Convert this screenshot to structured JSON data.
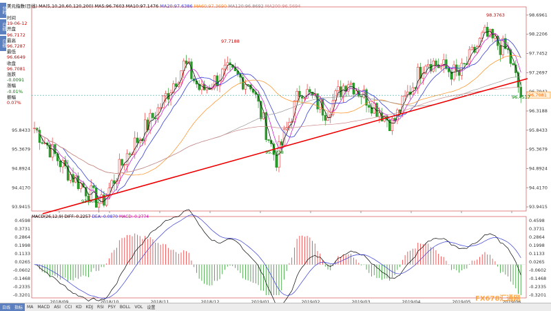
{
  "header": {
    "name": "美元指数(日线)",
    "ma_label": "MA(5,10,20,60,120,200)",
    "ma5": "MA5:96.7603",
    "ma10": "MA10:97.1476",
    "ma20": "MA20:97.6386",
    "ma60": "MA60:97.3690",
    "ma120": "MA120:96.8692",
    "ma200": "MA200:96.5694"
  },
  "sidebar": {
    "tabs": [
      "分时",
      "日线",
      "日线",
      "内外盘",
      "外盘",
      "外汇"
    ]
  },
  "info": [
    {
      "label": "时间",
      "value": "19-06-12"
    },
    {
      "label": "开盘",
      "value": "96.7172"
    },
    {
      "label": "最高",
      "value": "96.7287"
    },
    {
      "label": "最低",
      "value": "96.6649"
    },
    {
      "label": "收盘",
      "value": "96.7081"
    },
    {
      "label": "涨跌",
      "value": "-0.0091"
    },
    {
      "label": "涨幅",
      "value": "-0.01%"
    },
    {
      "label": "振幅",
      "value": "0.07%"
    }
  ],
  "price_ticks": [
    "98.6961",
    "98.2206",
    "97.7452",
    "97.2697",
    "96.7942",
    "96.3188",
    "95.8433",
    "95.3679",
    "94.8924",
    "94.4170",
    "93.9415"
  ],
  "macd_ticks": [
    "0.4598",
    "0.3731",
    "0.2864",
    "0.1998",
    "0.1133",
    "0.0265",
    "-0.0602",
    "-0.1468",
    "-0.2335",
    "-0.3201"
  ],
  "current_price": "96.7081",
  "macd": {
    "label": "MACD(26,12,9)",
    "diff": "DIFF:-0.2257",
    "dea": "DEA:-0.0870",
    "macd": "MACD:-0.2774"
  },
  "months": [
    "2018/09",
    "2018/10",
    "2018/11",
    "2018/12",
    "2019/01",
    "2019/02",
    "2019/03",
    "2019/04",
    "2019/05",
    "2019/06"
  ],
  "annotations": [
    {
      "text": "97.7188"
    },
    {
      "text": "98.3763"
    },
    {
      "text": "96.4517"
    },
    {
      "text": "95.0238"
    },
    {
      "text": "93.8082"
    }
  ],
  "toolbar": [
    "日线",
    "指标",
    "MA",
    "MACD",
    "ASI",
    "CCI",
    "KD",
    "KDJ",
    "RSI",
    "PSY",
    "BOLL",
    "VOL",
    "设置"
  ],
  "watermark": "FX678汇通网",
  "colors": {
    "up": "#e33",
    "down": "#2a9a2a",
    "trend": "#e00",
    "ma5": "#000",
    "ma10": "#222",
    "ma20": "#333bd8",
    "ma60": "#ff8c1a",
    "ma120": "#999",
    "ma200": "#c88"
  },
  "chart_data": {
    "type": "candlestick",
    "symbol": "美元指数",
    "period": "daily",
    "y_range": [
      93.9415,
      98.6961
    ],
    "price_levels": [
      98.6961,
      98.2206,
      97.7452,
      97.2697,
      96.7942,
      96.3188,
      95.8433,
      95.3679,
      94.8924,
      94.417,
      93.9415
    ],
    "annotations": [
      {
        "label": "97.7188",
        "date": "2018-11",
        "value": 97.7188
      },
      {
        "label": "98.3763",
        "date": "2019-05",
        "value": 98.3763
      },
      {
        "label": "96.4517",
        "date": "2019-06",
        "value": 96.4517
      },
      {
        "label": "95.0238",
        "date": "2019-01",
        "value": 95.0238
      },
      {
        "label": "93.8082",
        "date": "2018-09",
        "value": 93.8082
      }
    ],
    "last": {
      "date": "2019-06-12",
      "open": 96.7172,
      "high": 96.7287,
      "low": 96.6649,
      "close": 96.7081
    }
  }
}
